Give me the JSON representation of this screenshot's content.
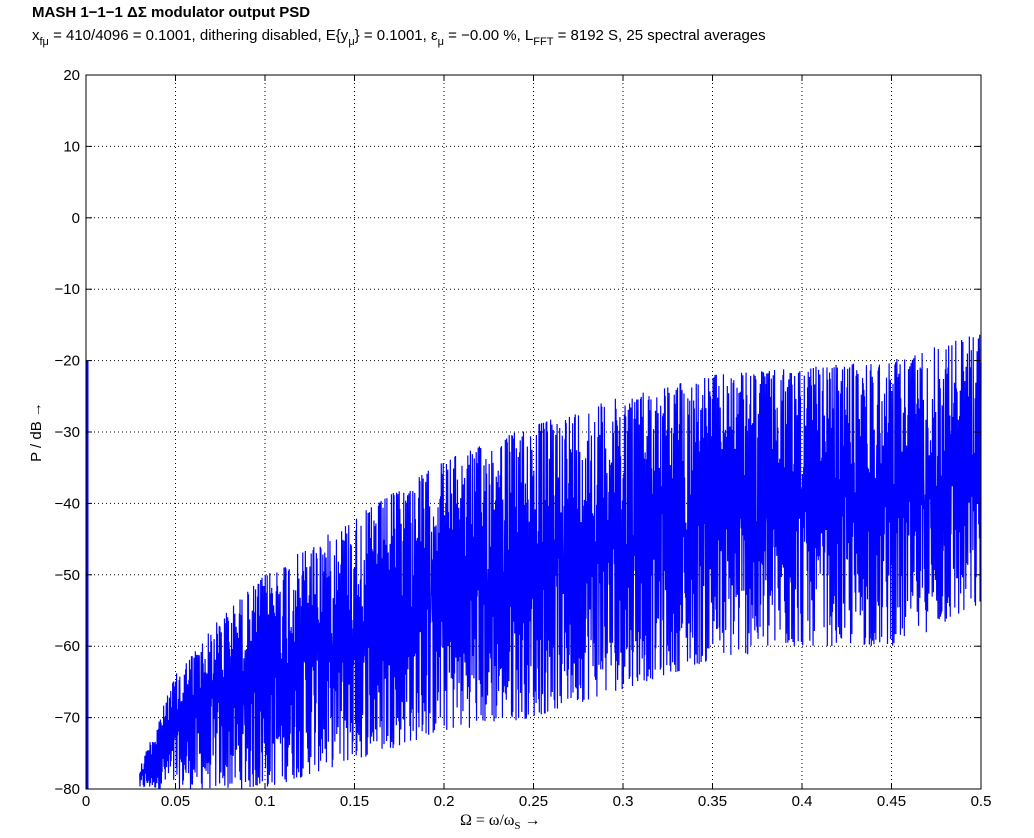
{
  "chart_data": {
    "type": "line",
    "title": "MASH 1−1−1 ΔΣ modulator output PSD",
    "subtitle": {
      "x_sym": "x",
      "x_sub": "fμ",
      "x_eq": " = 410/4096 = 0.1001, dithering disabled, E{y",
      "e_sub": "μ",
      "e_eq": "} = 0.1001, ε",
      "eps_sub": "μ",
      "eps_eq": " = −0.00 %, L",
      "l_sub": "FFT",
      "l_eq": " = 8192 S, 25 spectral averages"
    },
    "xlabel": {
      "text": "Ω = ω/ω",
      "sub": "S",
      "arrow": " →"
    },
    "ylabel": "P / dB →",
    "xlim": [
      0,
      0.5
    ],
    "ylim": [
      -80,
      20
    ],
    "xticks": [
      0,
      0.05,
      0.1,
      0.15,
      0.2,
      0.25,
      0.3,
      0.35,
      0.4,
      0.45,
      0.5
    ],
    "xtick_labels": [
      "0",
      "0.05",
      "0.1",
      "0.15",
      "0.2",
      "0.25",
      "0.3",
      "0.35",
      "0.4",
      "0.45",
      "0.5"
    ],
    "yticks": [
      -80,
      -70,
      -60,
      -50,
      -40,
      -30,
      -20,
      -10,
      0,
      10,
      20
    ],
    "ytick_labels": [
      "−80",
      "−70",
      "−60",
      "−50",
      "−40",
      "−30",
      "−20",
      "−10",
      "0",
      "10",
      "20"
    ],
    "grid": true,
    "series": [
      {
        "color": "#0000ff",
        "dc_spike": {
          "x": 0.0,
          "y": -20
        },
        "upper_envelope": {
          "x": [
            0.03,
            0.05,
            0.075,
            0.1,
            0.15,
            0.2,
            0.25,
            0.3,
            0.35,
            0.4,
            0.45,
            0.5
          ],
          "y": [
            -77,
            -64,
            -56,
            -50,
            -42,
            -34,
            -29,
            -25,
            -22,
            -21,
            -20,
            -16
          ]
        },
        "lower_envelope": {
          "x": [
            0.03,
            0.05,
            0.075,
            0.1,
            0.15,
            0.2,
            0.25,
            0.3,
            0.35,
            0.4,
            0.45,
            0.5
          ],
          "y": [
            -80,
            -80,
            -80,
            -80,
            -76,
            -72,
            -70,
            -66,
            -62,
            -60,
            -60,
            -55
          ]
        }
      }
    ]
  }
}
